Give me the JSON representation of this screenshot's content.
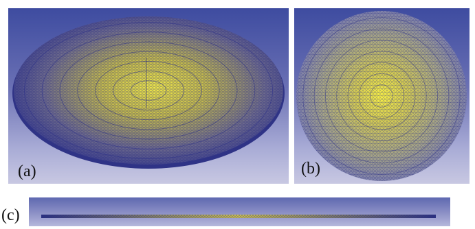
{
  "figure": {
    "panel_a": {
      "label": "(a)"
    },
    "panel_b": {
      "label": "(b)"
    },
    "panel_c": {
      "label": "(c)"
    },
    "colors": {
      "background_top": "#3e4ca0",
      "background_bottom": "#c8c8e2",
      "mesh_line": "#2a2f8a",
      "mesh_fill_center": "#f2e84a",
      "mesh_fill_edge": "#5a5ea8"
    }
  }
}
